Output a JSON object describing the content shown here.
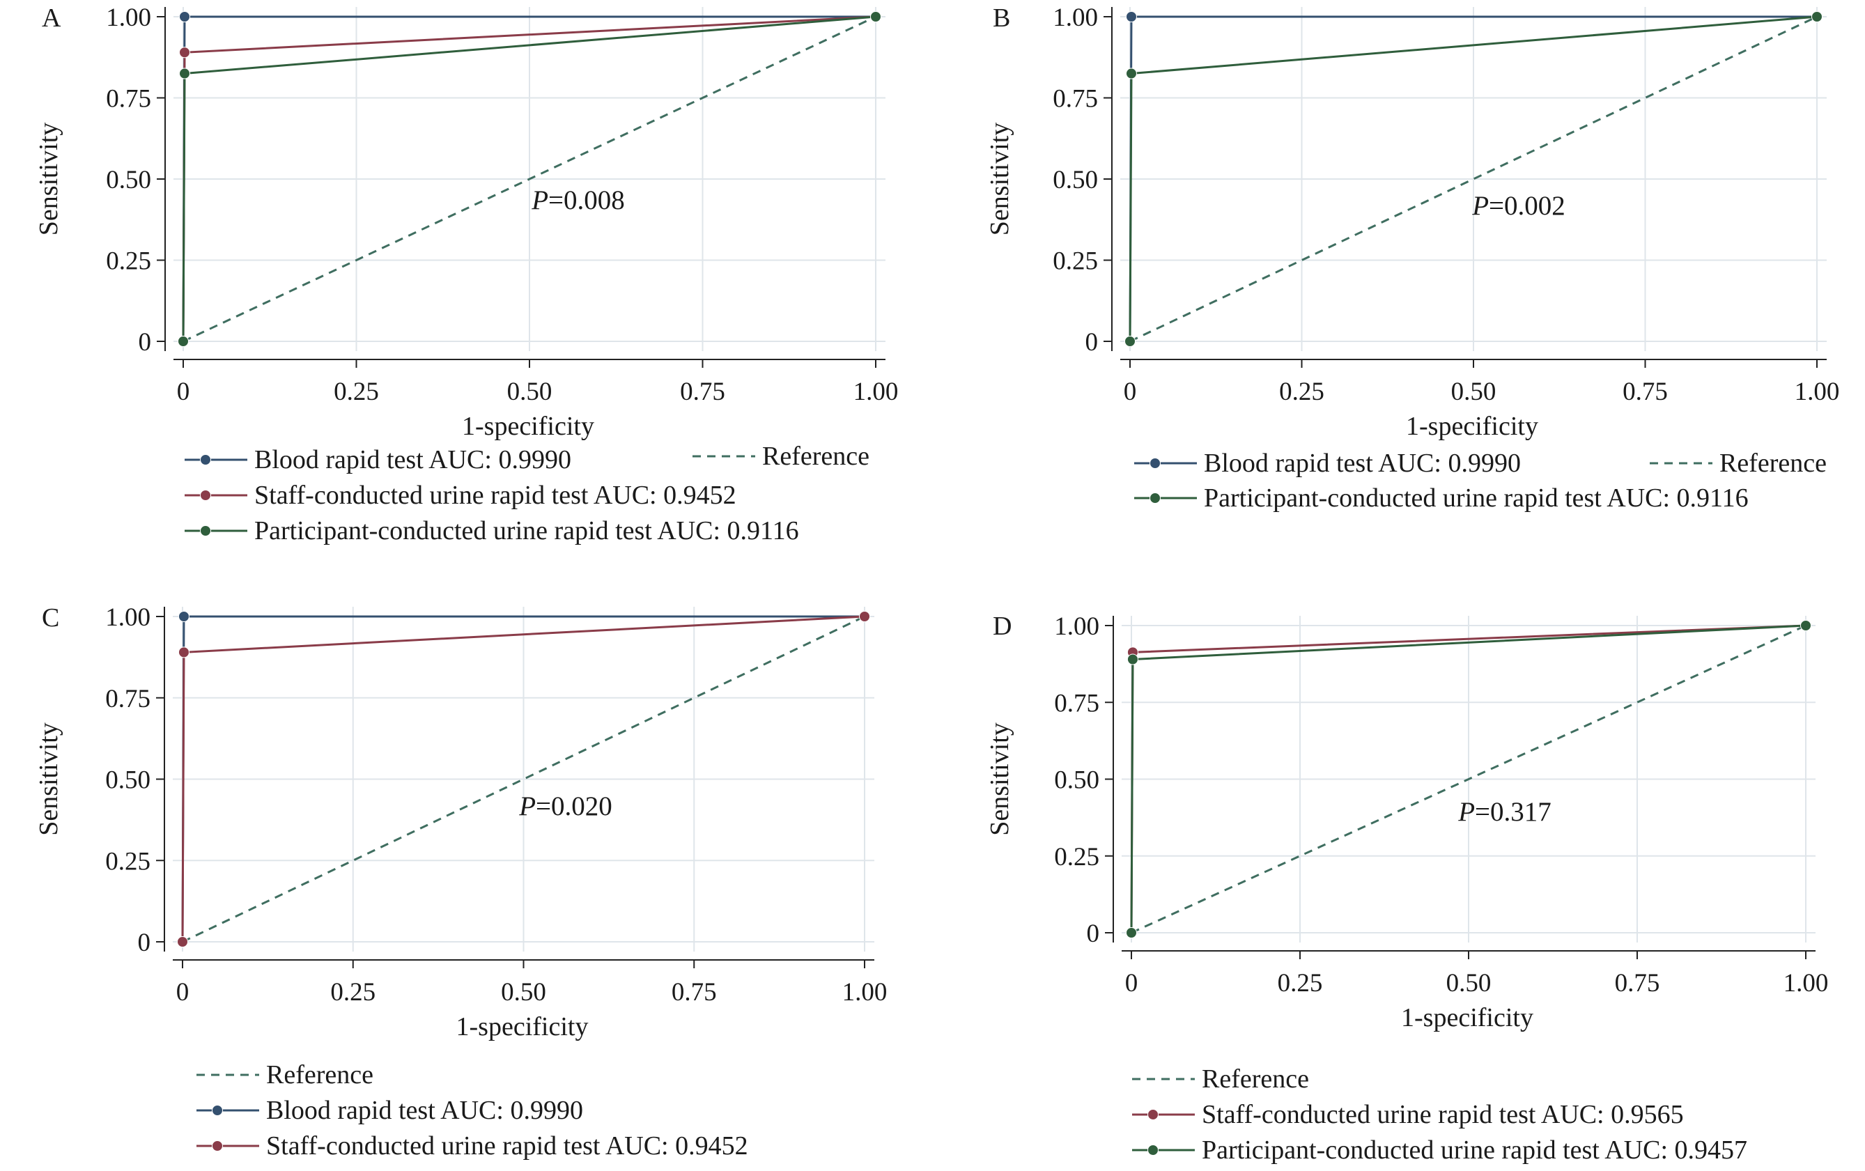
{
  "chart_data": [
    {
      "type": "line",
      "panel_label": "A",
      "xlabel": "1-specificity",
      "ylabel": "Sensitivity",
      "xlim": [
        0,
        1
      ],
      "ylim": [
        0,
        1
      ],
      "xticks": [
        "0",
        "0.25",
        "0.50",
        "0.75",
        "1.00"
      ],
      "yticks": [
        "0",
        "0.25",
        "0.50",
        "0.75",
        "1.00"
      ],
      "grid": true,
      "annotation": {
        "italic": "P",
        "text": "=0.008"
      },
      "series": [
        {
          "name": "Blood rapid test AUC: 0.9990",
          "color": "#34506f",
          "x": [
            0,
            0.002,
            1
          ],
          "y": [
            0,
            1.0,
            1.0
          ]
        },
        {
          "name": "Staff-conducted urine rapid test AUC: 0.9452",
          "color": "#8a3c49",
          "x": [
            0,
            0.002,
            1
          ],
          "y": [
            0,
            0.89,
            1.0
          ]
        },
        {
          "name": "Participant-conducted urine rapid test AUC: 0.9116",
          "color": "#2f5e3c",
          "x": [
            0,
            0.002,
            1
          ],
          "y": [
            0,
            0.825,
            1.0
          ]
        },
        {
          "name": "Reference",
          "color": "#3f6e60",
          "dashed": true,
          "x": [
            0,
            1
          ],
          "y": [
            0,
            1
          ]
        }
      ],
      "legend": {
        "position": "bottom",
        "rows": [
          [
            "Blood rapid test AUC: 0.9990",
            "Reference"
          ],
          [
            "Staff-conducted urine rapid test AUC: 0.9452"
          ],
          [
            "Participant-conducted urine rapid test AUC: 0.9116"
          ]
        ]
      }
    },
    {
      "type": "line",
      "panel_label": "B",
      "xlabel": "1-specificity",
      "ylabel": "Sensitivity",
      "xlim": [
        0,
        1
      ],
      "ylim": [
        0,
        1
      ],
      "xticks": [
        "0",
        "0.25",
        "0.50",
        "0.75",
        "1.00"
      ],
      "yticks": [
        "0",
        "0.25",
        "0.50",
        "0.75",
        "1.00"
      ],
      "grid": true,
      "annotation": {
        "italic": "P",
        "text": "=0.002"
      },
      "series": [
        {
          "name": "Blood rapid test AUC: 0.9990",
          "color": "#34506f",
          "x": [
            0,
            0.002,
            1
          ],
          "y": [
            0,
            1.0,
            1.0
          ]
        },
        {
          "name": "Participant-conducted urine rapid test AUC: 0.9116",
          "color": "#2f5e3c",
          "x": [
            0,
            0.002,
            1
          ],
          "y": [
            0,
            0.825,
            1.0
          ]
        },
        {
          "name": "Reference",
          "color": "#3f6e60",
          "dashed": true,
          "x": [
            0,
            1
          ],
          "y": [
            0,
            1
          ]
        }
      ],
      "legend": {
        "position": "bottom",
        "rows": [
          [
            "Blood rapid test AUC: 0.9990",
            "Reference"
          ],
          [
            "Participant-conducted urine rapid test AUC: 0.9116"
          ]
        ]
      }
    },
    {
      "type": "line",
      "panel_label": "C",
      "xlabel": "1-specificity",
      "ylabel": "Sensitivity",
      "xlim": [
        0,
        1
      ],
      "ylim": [
        0,
        1
      ],
      "xticks": [
        "0",
        "0.25",
        "0.50",
        "0.75",
        "1.00"
      ],
      "yticks": [
        "0",
        "0.25",
        "0.50",
        "0.75",
        "1.00"
      ],
      "grid": true,
      "annotation": {
        "italic": "P",
        "text": "=0.020"
      },
      "series": [
        {
          "name": "Blood rapid test AUC: 0.9990",
          "color": "#34506f",
          "x": [
            0,
            0.002,
            1
          ],
          "y": [
            0,
            1.0,
            1.0
          ]
        },
        {
          "name": "Staff-conducted urine rapid test AUC: 0.9452",
          "color": "#8a3c49",
          "x": [
            0,
            0.002,
            1
          ],
          "y": [
            0,
            0.89,
            1.0
          ]
        },
        {
          "name": "Reference",
          "color": "#3f6e60",
          "dashed": true,
          "x": [
            0,
            1
          ],
          "y": [
            0,
            1
          ]
        }
      ],
      "legend": {
        "position": "bottom",
        "rows": [
          [
            "Reference"
          ],
          [
            "Blood rapid test AUC: 0.9990"
          ],
          [
            "Staff-conducted urine rapid test AUC: 0.9452"
          ]
        ]
      }
    },
    {
      "type": "line",
      "panel_label": "D",
      "xlabel": "1-specificity",
      "ylabel": "Sensitivity",
      "xlim": [
        0,
        1
      ],
      "ylim": [
        0,
        1
      ],
      "xticks": [
        "0",
        "0.25",
        "0.50",
        "0.75",
        "1.00"
      ],
      "yticks": [
        "0",
        "0.25",
        "0.50",
        "0.75",
        "1.00"
      ],
      "grid": true,
      "annotation": {
        "italic": "P",
        "text": "=0.317"
      },
      "series": [
        {
          "name": "Staff-conducted urine rapid test AUC: 0.9565",
          "color": "#8a3c49",
          "x": [
            0,
            0.002,
            1
          ],
          "y": [
            0,
            0.913,
            1.0
          ]
        },
        {
          "name": "Participant-conducted urine rapid test AUC: 0.9457",
          "color": "#2f5e3c",
          "x": [
            0,
            0.002,
            1
          ],
          "y": [
            0,
            0.89,
            1.0
          ]
        },
        {
          "name": "Reference",
          "color": "#3f6e60",
          "dashed": true,
          "x": [
            0,
            1
          ],
          "y": [
            0,
            1
          ]
        }
      ],
      "legend": {
        "position": "bottom",
        "rows": [
          [
            "Reference"
          ],
          [
            "Staff-conducted urine rapid test AUC: 0.9565"
          ],
          [
            "Participant-conducted urine rapid test AUC: 0.9457"
          ]
        ]
      }
    }
  ]
}
